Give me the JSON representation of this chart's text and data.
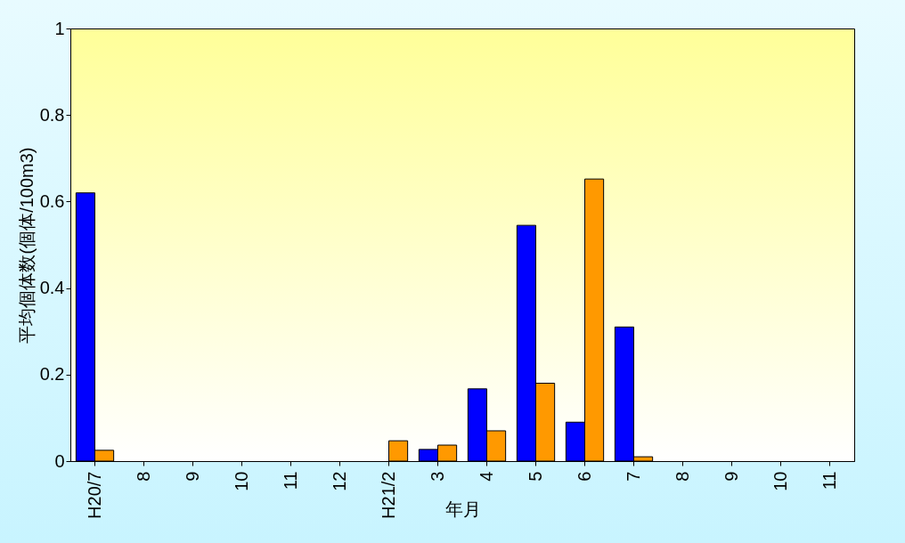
{
  "chart_data": {
    "type": "bar",
    "xlabel": "年月",
    "ylabel": "平均個体数(個体/100m3)",
    "categories": [
      "H20/7",
      "8",
      "9",
      "10",
      "11",
      "12",
      "H21/2",
      "3",
      "4",
      "5",
      "6",
      "7",
      "8",
      "9",
      "10",
      "11"
    ],
    "series": [
      {
        "color": "#0000ff",
        "values": [
          0.62,
          null,
          null,
          null,
          null,
          null,
          null,
          0.027,
          0.167,
          0.545,
          0.09,
          0.31,
          null,
          null,
          null,
          null
        ]
      },
      {
        "color": "#ff9900",
        "values": [
          0.025,
          null,
          null,
          null,
          null,
          null,
          0.047,
          0.037,
          0.07,
          0.18,
          0.652,
          0.01,
          null,
          null,
          null,
          null
        ]
      }
    ],
    "ylim": [
      0,
      1
    ],
    "yticks": [
      0,
      0.2,
      0.4,
      0.6,
      0.8,
      1
    ],
    "grid": false,
    "legend": false
  }
}
